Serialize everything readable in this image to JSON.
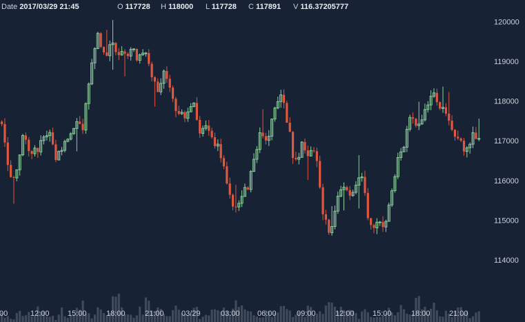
{
  "header": {
    "date_label": "Date",
    "date_value": "2017/03/29 21:45",
    "open_label": "O",
    "open_value": "117728",
    "high_label": "H",
    "high_value": "118000",
    "low_label": "L",
    "low_value": "117728",
    "close_label": "C",
    "close_value": "117891",
    "volume_label": "V",
    "volume_value": "116.37205777"
  },
  "colors": {
    "background": "#172234",
    "up": "#8fd19e",
    "down": "#e0573f",
    "volume": "#3f4a5a",
    "text": "#c9d1dc"
  },
  "chart_data": {
    "type": "candlestick",
    "interval_minutes": 15,
    "price_range": [
      113600,
      120200
    ],
    "y_ticks": [
      114000,
      115000,
      116000,
      117000,
      118000,
      119000,
      120000
    ],
    "x_tick_labels": [
      ":00",
      "12:00",
      "15:00",
      "18:00",
      "21:00",
      "03/29",
      "03:00",
      "06:00",
      "09:00",
      "12:00",
      "15:00",
      "18:00",
      "21:00"
    ],
    "price_path": [
      117400,
      116200,
      115900,
      117100,
      116800,
      116700,
      117000,
      117200,
      116600,
      116900,
      117100,
      117500,
      117300,
      118900,
      119700,
      119100,
      119400,
      119200,
      119100,
      119300,
      119000,
      119200,
      118600,
      118300,
      118800,
      118000,
      117700,
      117600,
      118000,
      117300,
      117500,
      117000,
      116700,
      116000,
      115300,
      115500,
      115800,
      116500,
      117200,
      117000,
      117800,
      118300,
      117400,
      116400,
      116900,
      116700,
      116700,
      115300,
      114700,
      115300,
      116000,
      115600,
      116000,
      116000,
      114800,
      115000,
      114800,
      115500,
      116400,
      116900,
      117600,
      117400,
      117700,
      118200,
      118000,
      117700,
      117200,
      117000,
      116800,
      117100,
      117000
    ],
    "volume_profile": [
      2,
      1,
      3,
      2,
      1,
      4,
      2,
      1,
      3,
      1,
      2,
      5,
      2,
      1,
      3,
      2,
      6,
      8,
      3,
      2,
      4,
      7,
      2,
      3,
      1,
      5,
      3,
      2,
      4,
      1,
      2,
      3,
      5,
      2,
      6,
      4,
      3,
      2,
      1,
      3,
      2,
      4,
      3,
      2,
      1,
      5,
      2,
      4,
      9,
      3,
      5,
      3,
      2,
      4,
      2,
      1,
      2,
      3,
      2,
      4,
      3,
      7,
      4,
      5,
      2,
      3,
      2,
      6,
      2,
      1,
      3
    ]
  }
}
